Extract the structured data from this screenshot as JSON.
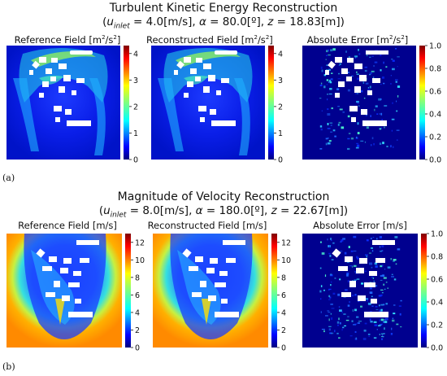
{
  "panel_a": {
    "label": "(a)",
    "title": "Turbulent Kinetic Energy Reconstruction",
    "subtitle": {
      "u_var": "u",
      "u_sub": "inlet",
      "u_val": " = 4.0[m/s], ",
      "alpha_var": "α",
      "alpha_val": " = 80.0[º], ",
      "z_var": "z",
      "z_val": " = 18.83[m])"
    },
    "plots": [
      {
        "title": "Reference Field [m",
        "unit_sup": "2",
        "title_mid": "/s",
        "unit_sup2": "2",
        "title_end": "]",
        "colorbar": {
          "colormap": "jet",
          "ticks": [
            "0",
            "1",
            "2",
            "3",
            "4"
          ],
          "range": [
            0,
            4.3
          ]
        }
      },
      {
        "title": "Reconstructed Field [m",
        "unit_sup": "2",
        "title_mid": "/s",
        "unit_sup2": "2",
        "title_end": "]",
        "colorbar": {
          "colormap": "jet",
          "ticks": [
            "0",
            "1",
            "2",
            "3",
            "4"
          ],
          "range": [
            0,
            4.3
          ]
        }
      },
      {
        "title": "Absolute Error [m",
        "unit_sup": "2",
        "title_mid": "/s",
        "unit_sup2": "2",
        "title_end": "]",
        "colorbar": {
          "colormap": "jet",
          "ticks": [
            "0.0",
            "0.2",
            "0.4",
            "0.6",
            "0.8",
            "1.0"
          ],
          "range": [
            0,
            1.0
          ]
        }
      }
    ]
  },
  "panel_b": {
    "label": "(b)",
    "title": "Magnitude of Velocity Reconstruction",
    "subtitle": {
      "u_var": "u",
      "u_sub": "inlet",
      "u_val": " = 8.0[m/s], ",
      "alpha_var": "α",
      "alpha_val": " = 180.0[º], ",
      "z_var": "z",
      "z_val": " = 22.67[m])"
    },
    "plots": [
      {
        "title": "Reference Field [m/s]",
        "colorbar": {
          "colormap": "jet",
          "ticks": [
            "0",
            "2",
            "4",
            "6",
            "8",
            "10",
            "12"
          ],
          "range": [
            0,
            13
          ]
        }
      },
      {
        "title": "Reconstructed Field [m/s]",
        "colorbar": {
          "colormap": "jet",
          "ticks": [
            "0",
            "2",
            "4",
            "6",
            "8",
            "10",
            "12"
          ],
          "range": [
            0,
            13
          ]
        }
      },
      {
        "title": "Absolute Error [m/s]",
        "colorbar": {
          "colormap": "jet",
          "ticks": [
            "0.0",
            "0.2",
            "0.4",
            "0.6",
            "0.8",
            "1.0"
          ],
          "range": [
            0,
            1.0
          ]
        }
      }
    ]
  },
  "colors": {
    "jet_low": "#00007f",
    "jet_mid": "#00e0ff",
    "jet_high": "#7f0000",
    "building": "#ffffff"
  }
}
